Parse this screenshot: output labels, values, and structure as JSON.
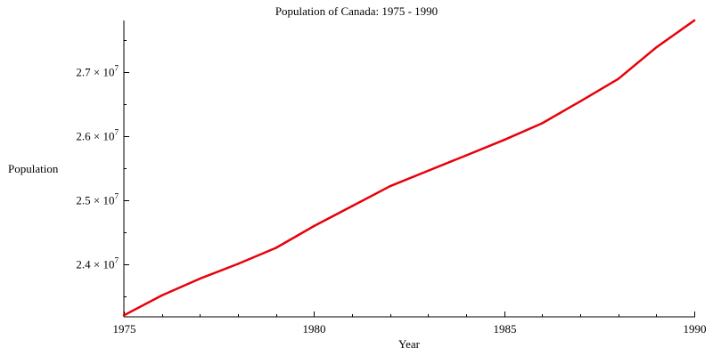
{
  "chart_data": {
    "type": "line",
    "title": "Population of Canada: 1975 - 1990",
    "xlabel": "Year",
    "ylabel": "Population",
    "x": [
      1975,
      1976,
      1977,
      1978,
      1979,
      1980,
      1981,
      1982,
      1983,
      1984,
      1985,
      1986,
      1987,
      1988,
      1989,
      1990
    ],
    "series": [
      {
        "name": "Population",
        "color": "#e8000b",
        "values": [
          23210000,
          23520000,
          23780000,
          24010000,
          24260000,
          24600000,
          24910000,
          25220000,
          25460000,
          25700000,
          25940000,
          26200000,
          26540000,
          26890000,
          27380000,
          27800000
        ]
      }
    ],
    "xlim": [
      1975,
      1990
    ],
    "ylim": [
      23200000,
      27800000
    ],
    "xticks": [
      {
        "value": 1975,
        "label": "1975"
      },
      {
        "value": 1980,
        "label": "1980"
      },
      {
        "value": 1985,
        "label": "1985"
      },
      {
        "value": 1990,
        "label": "1990"
      }
    ],
    "yticks": [
      {
        "value": 24000000,
        "mantissa": "2.4",
        "sep": " × ",
        "base": "10",
        "exp": "7"
      },
      {
        "value": 25000000,
        "mantissa": "2.5",
        "sep": " × ",
        "base": "10",
        "exp": "7"
      },
      {
        "value": 26000000,
        "mantissa": "2.6",
        "sep": " × ",
        "base": "10",
        "exp": "7"
      },
      {
        "value": 27000000,
        "mantissa": "2.7",
        "sep": " × ",
        "base": "10",
        "exp": "7"
      }
    ],
    "y_minor_step": 500000,
    "x_minor_step": 1,
    "grid": false,
    "legend": "none"
  }
}
